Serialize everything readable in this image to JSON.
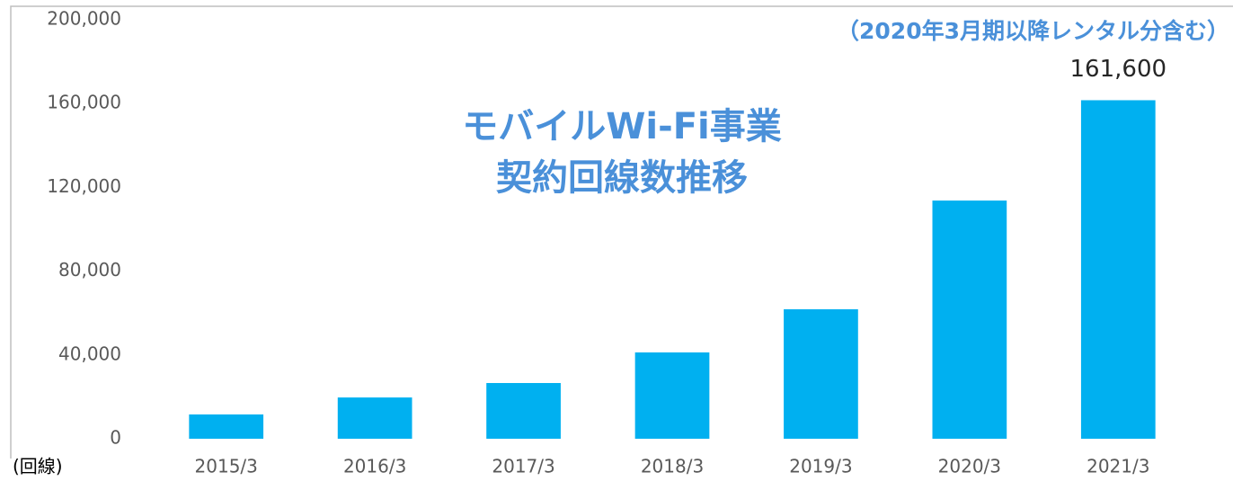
{
  "chart_data": {
    "type": "bar",
    "title": [
      "モバイルWi-Fi事業",
      "契約回線数推移"
    ],
    "annotation": "（2020年3月期以降レンタル分含む）",
    "y_unit": "(回線)",
    "categories": [
      "2015/3",
      "2016/3",
      "2017/3",
      "2018/3",
      "2019/3",
      "2020/3",
      "2021/3"
    ],
    "values": [
      11600,
      19700,
      26600,
      41200,
      61800,
      113700,
      161600
    ],
    "value_labels": [
      null,
      null,
      null,
      null,
      null,
      null,
      "161,600"
    ],
    "color": "#00b0f0",
    "ylim": [
      0,
      200000
    ],
    "yticks": [
      0,
      {
        "value": 40000,
        "label": "40,000"
      },
      {
        "value": 80000,
        "label": "80,000"
      },
      {
        "value": 120000,
        "label": "120,000"
      },
      {
        "value": 160000,
        "label": "160,000"
      },
      {
        "value": 200000,
        "label": "200,000"
      }
    ],
    "grid": false
  }
}
